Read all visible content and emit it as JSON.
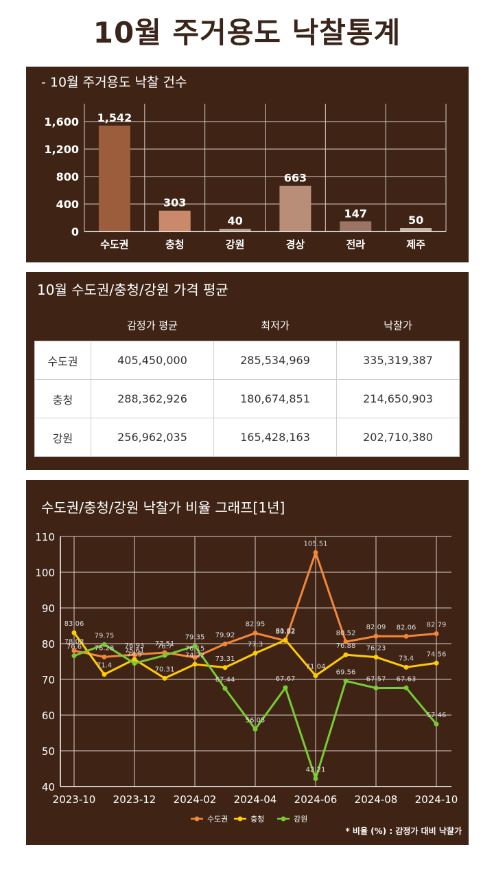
{
  "page": {
    "title": "10월 주거용도 낙찰통계"
  },
  "bar_panel": {
    "title": "- 10월 주거용도 낙찰 건수"
  },
  "table_panel": {
    "title": "10월 수도권/충청/강원 가격 평균",
    "headers": [
      "",
      "감정가 평균",
      "최저가",
      "낙찰가"
    ],
    "rows": [
      [
        "수도권",
        "405,450,000",
        "285,534,969",
        "335,319,387"
      ],
      [
        "충청",
        "288,362,926",
        "180,674,851",
        "214,650,903"
      ],
      [
        "강원",
        "256,962,035",
        "165,428,163",
        "202,710,380"
      ]
    ]
  },
  "line_panel": {
    "title": "수도권/충청/강원 낙찰가 비율 그래프[1년]",
    "note": "* 비율 (%) : 감정가 대비 낙찰가"
  },
  "chart_data": [
    {
      "type": "bar",
      "title": "- 10월 주거용도 낙찰 건수",
      "categories": [
        "수도권",
        "충청",
        "강원",
        "경상",
        "전라",
        "제주"
      ],
      "values": [
        1542,
        303,
        40,
        663,
        147,
        50
      ],
      "value_labels": [
        "1,542",
        "303",
        "40",
        "663",
        "147",
        "50"
      ],
      "yticks": [
        "0",
        "400",
        "800",
        "1,200",
        "1,600"
      ],
      "ylim": [
        0,
        1600
      ],
      "grid": true,
      "colors": [
        "#9b5d3b",
        "#c9896a",
        "#b49a8a",
        "#b88e78",
        "#9a7565",
        "#c9b3a6"
      ]
    },
    {
      "type": "line",
      "title": "수도권/충청/강원 낙찰가 비율 그래프[1년]",
      "x": [
        "2023-10",
        "2023-11",
        "2023-12",
        "2024-01",
        "2024-02",
        "2024-03",
        "2024-04",
        "2024-05",
        "2024-06",
        "2024-07",
        "2024-08",
        "2024-09",
        "2024-10"
      ],
      "xticks": [
        "2023-10",
        "2023-12",
        "2024-02",
        "2024-04",
        "2024-06",
        "2024-08",
        "2024-10"
      ],
      "yticks": [
        "40",
        "50",
        "60",
        "70",
        "80",
        "90",
        "100",
        "110"
      ],
      "ylim": [
        40,
        110
      ],
      "grid": true,
      "legend": "bottom",
      "series": [
        {
          "name": "수도권",
          "color": "#f2873a",
          "values": [
            78.03,
            76.28,
            76.93,
            77.51,
            76.15,
            79.92,
            82.95,
            80.82,
            105.51,
            80.52,
            82.09,
            82.06,
            82.79
          ],
          "labels": [
            "78.03",
            "76.28",
            "76.93",
            "77.51",
            "76.15",
            "79.92",
            "82.95",
            "80.82",
            "105.51",
            "80.52",
            "82.09",
            "82.06",
            "82.79"
          ]
        },
        {
          "name": "충청",
          "color": "#ffcc00",
          "values": [
            83.06,
            71.4,
            75.61,
            70.31,
            74.22,
            73.31,
            77.3,
            81.02,
            71.04,
            76.88,
            76.23,
            73.4,
            74.56
          ],
          "labels": [
            "83.06",
            "71.4",
            "75.61",
            "70.31",
            "74.22",
            "73.31",
            "77.3",
            "81.02",
            "71.04",
            "76.88",
            "76.23",
            "73.4",
            "74.56"
          ]
        },
        {
          "name": "강원",
          "color": "#77cc33",
          "values": [
            76.6,
            79.75,
            74.5,
            76.7,
            79.35,
            67.44,
            56.05,
            67.67,
            42.21,
            69.56,
            67.57,
            67.63,
            57.46
          ],
          "labels": [
            "76.6",
            "79.75",
            "74.5",
            "76.7",
            "79.35",
            "67.44",
            "56.05",
            "67.67",
            "42.21",
            "69.56",
            "67.57",
            "67.63",
            "57.46"
          ]
        }
      ]
    }
  ]
}
